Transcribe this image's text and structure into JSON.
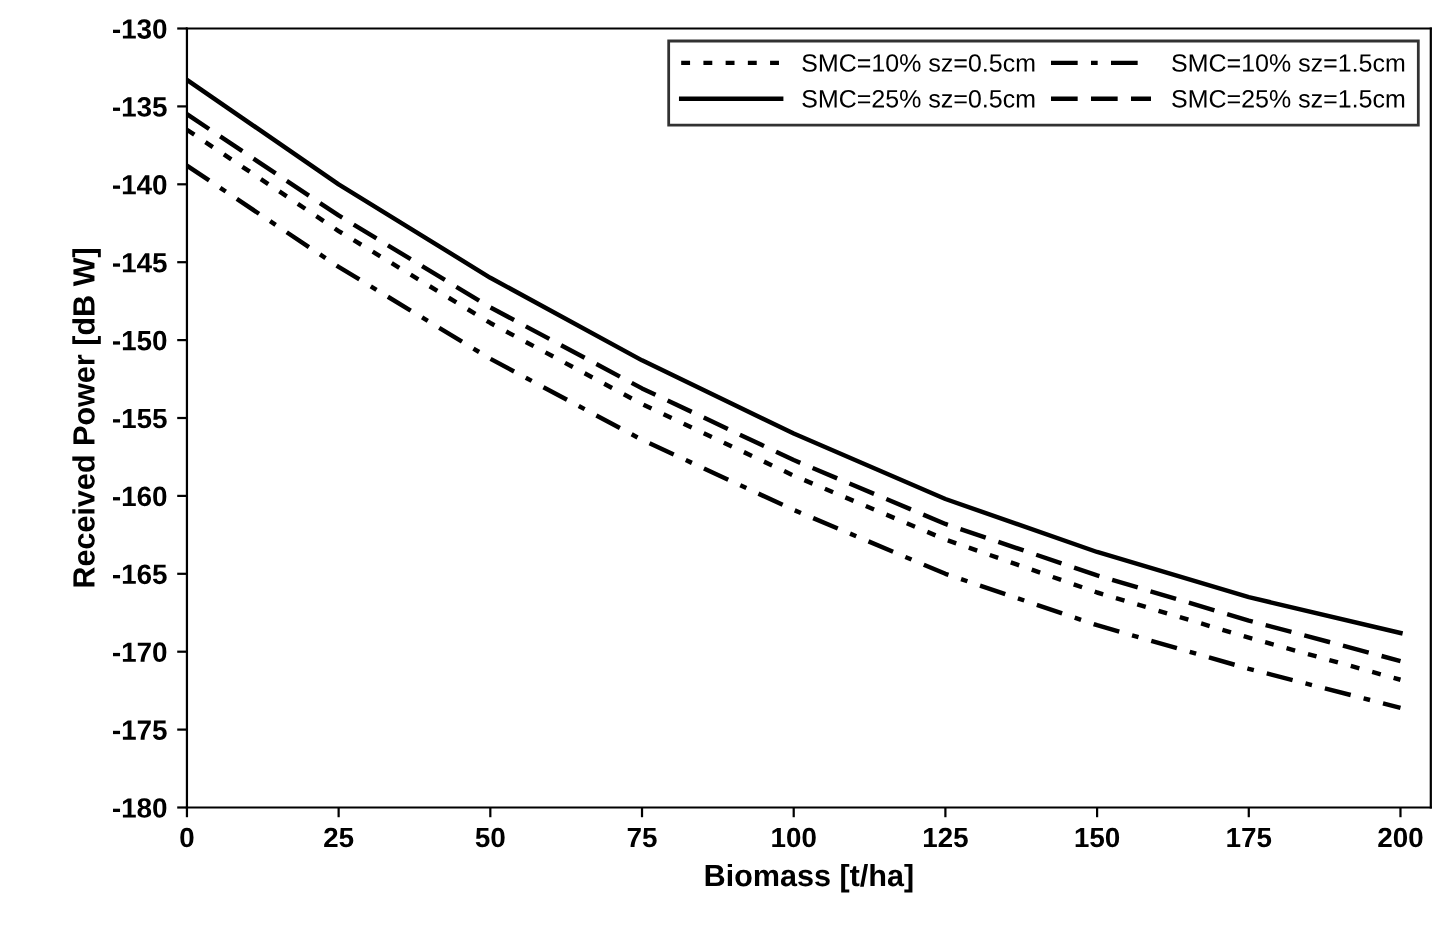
{
  "chart_data": {
    "type": "line",
    "xlabel": "Biomass [t/ha]",
    "ylabel": "Received Power [dB W]",
    "x": [
      0,
      25,
      50,
      75,
      100,
      125,
      150,
      175,
      200
    ],
    "series": [
      {
        "name": "SMC=10% sz=0.5cm",
        "color": "#000000",
        "line_style": "dotted",
        "values": [
          -136.5,
          -143,
          -148.9,
          -154.1,
          -158.7,
          -162.8,
          -166.2,
          -169.1,
          -171.8
        ]
      },
      {
        "name": "SMC=25% sz=0.5cm",
        "color": "#000000",
        "line_style": "solid",
        "values": [
          -133.3,
          -140,
          -146,
          -151.3,
          -156,
          -160.2,
          -163.6,
          -166.5,
          -168.8
        ]
      },
      {
        "name": "SMC=10% sz=1.5cm",
        "color": "#000000",
        "line_style": "dashdot",
        "values": [
          -138.8,
          -145.3,
          -151.2,
          -156.4,
          -160.9,
          -165,
          -168.3,
          -171.1,
          -173.6
        ]
      },
      {
        "name": "SMC=25% sz=1.5cm",
        "color": "#000000",
        "line_style": "dashed",
        "values": [
          -135.5,
          -142,
          -147.9,
          -153.1,
          -157.7,
          -161.8,
          -165.1,
          -168,
          -170.6
        ]
      }
    ],
    "xlim": [
      0,
      205
    ],
    "ylim": [
      -180,
      -130
    ],
    "xticks": [
      0,
      25,
      50,
      75,
      100,
      125,
      150,
      175,
      200
    ],
    "yticks": [
      -180,
      -175,
      -170,
      -165,
      -160,
      -155,
      -150,
      -145,
      -140,
      -135,
      -130
    ],
    "grid": false,
    "legend": "top right",
    "marker": "none"
  }
}
